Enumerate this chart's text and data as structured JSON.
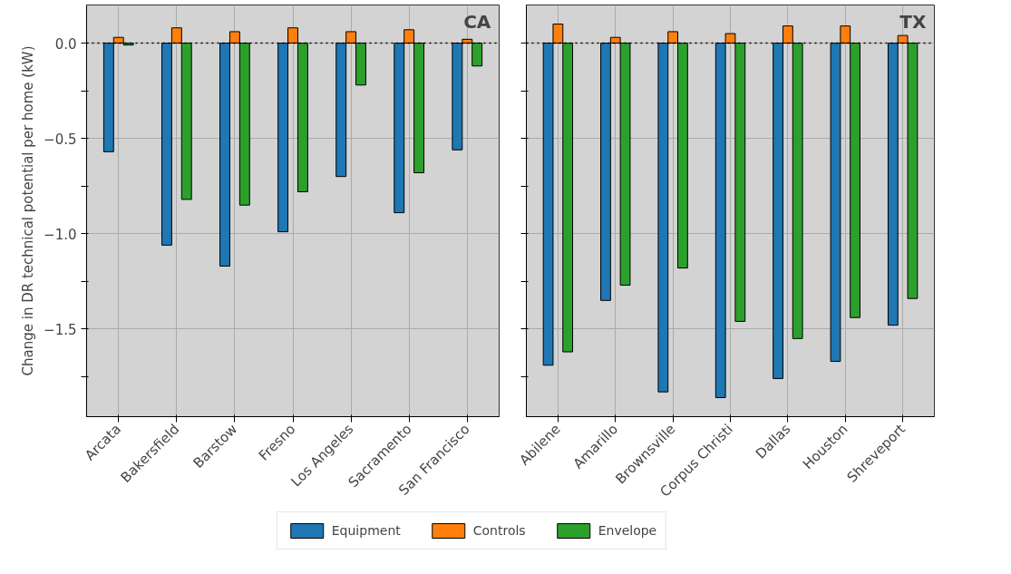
{
  "chart_data": [
    {
      "type": "bar",
      "title": "CA",
      "ylabel": "Change in DR technical potential per home (kW)",
      "categories": [
        "Arcata",
        "Bakersfield",
        "Barstow",
        "Fresno",
        "Los Angeles",
        "Sacramento",
        "San Francisco"
      ],
      "series": [
        {
          "name": "Equipment",
          "color": "#1f77b4",
          "values": [
            -0.57,
            -1.06,
            -1.17,
            -0.99,
            -0.7,
            -0.89,
            -0.56
          ]
        },
        {
          "name": "Controls",
          "color": "#ff7f0e",
          "values": [
            0.03,
            0.08,
            0.06,
            0.08,
            0.06,
            0.07,
            0.02
          ]
        },
        {
          "name": "Envelope",
          "color": "#2ca02c",
          "values": [
            -0.01,
            -0.82,
            -0.85,
            -0.78,
            -0.22,
            -0.68,
            -0.12
          ]
        }
      ],
      "ylim": [
        -1.96,
        0.2
      ],
      "yticks": [
        {
          "value": -1.75,
          "label": null
        },
        -1.5,
        {
          "value": -1.25,
          "label": null
        },
        {
          "value": -1,
          "label": "−1.0"
        },
        {
          "value": -0.75,
          "label": null
        },
        -0.5,
        {
          "value": -0.25,
          "label": null
        },
        {
          "value": 0,
          "label": "0.0"
        }
      ],
      "ref_lines": [
        {
          "axis": "y",
          "value": 0,
          "color": "#000000",
          "line_style": "dotted"
        }
      ],
      "grid": true,
      "legend": "bottom"
    },
    {
      "type": "bar",
      "title": "TX",
      "categories": [
        "Abilene",
        "Amarillo",
        "Brownsville",
        "Corpus Christi",
        "Dallas",
        "Houston",
        "Shreveport"
      ],
      "series": [
        {
          "color": "#1f77b4",
          "values": [
            -1.69,
            -1.35,
            -1.83,
            -1.86,
            -1.76,
            -1.67,
            -1.48
          ]
        },
        {
          "color": "#ff7f0e",
          "values": [
            0.1,
            0.03,
            0.06,
            0.05,
            0.09,
            0.09,
            0.04
          ]
        },
        {
          "color": "#2ca02c",
          "values": [
            -1.62,
            -1.27,
            -1.18,
            -1.46,
            -1.55,
            -1.44,
            -1.34
          ]
        }
      ],
      "ylim": [
        -1.96,
        0.2
      ],
      "yticks": [
        {
          "value": -1.75,
          "label": null
        },
        -1.5,
        {
          "value": -1.25,
          "label": null
        },
        -1.0,
        {
          "value": -0.75,
          "label": null
        },
        -0.5,
        {
          "value": -0.25,
          "label": null
        },
        0.0
      ],
      "ref_lines": [
        {
          "axis": "y",
          "value": 0,
          "color": "#000000",
          "line_style": "dotted"
        }
      ],
      "grid": true,
      "tick_labels": "x"
    }
  ]
}
